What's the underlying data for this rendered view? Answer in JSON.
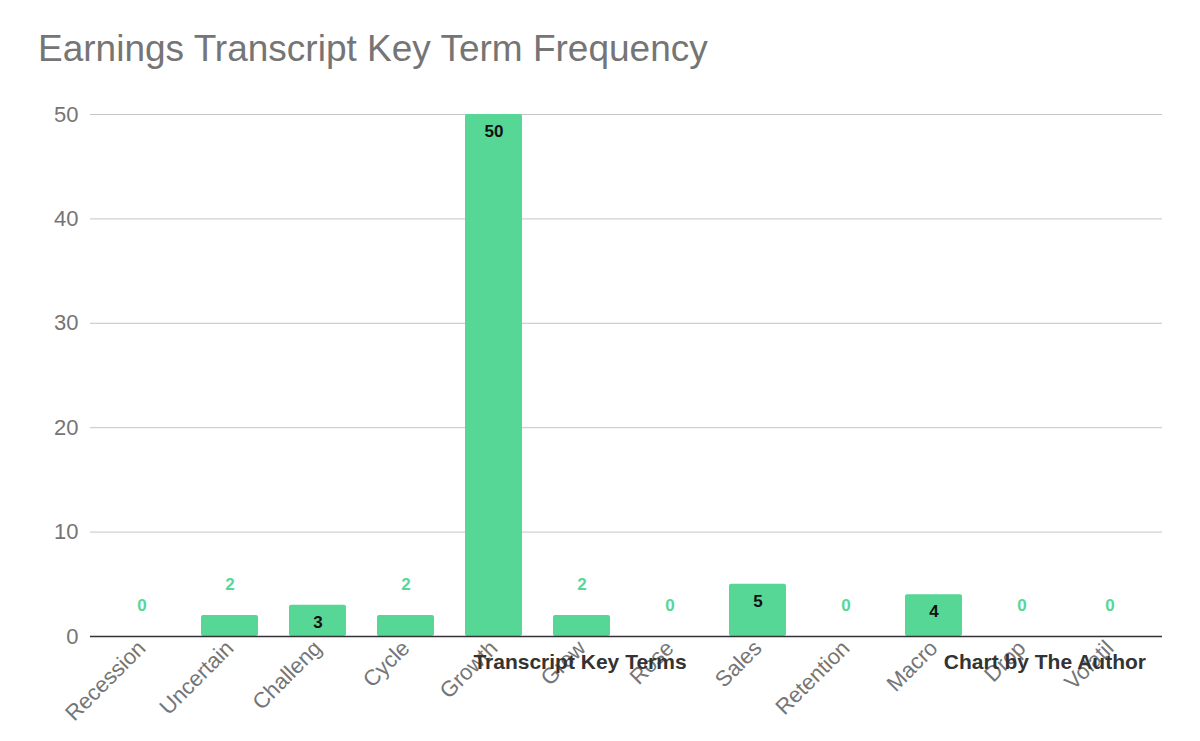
{
  "chart_data": {
    "type": "bar",
    "title": "Earnings Transcript Key Term Frequency",
    "x_label": "Transcript Key Terms",
    "caption": "Chart by The Author",
    "categories": [
      "Recession",
      "Uncertain",
      "Challeng",
      "Cycle",
      "Growth",
      "Grew",
      "Rose",
      "Sales",
      "Retention",
      "Macro",
      "Drop",
      "Volatil"
    ],
    "values": [
      0,
      2,
      3,
      2,
      50,
      2,
      0,
      5,
      0,
      4,
      0,
      0
    ],
    "color": "#57d795",
    "ylim": [
      0,
      50
    ],
    "yticks": [
      0,
      10,
      20,
      30,
      40,
      50
    ],
    "grid": true,
    "data_labels": true
  }
}
